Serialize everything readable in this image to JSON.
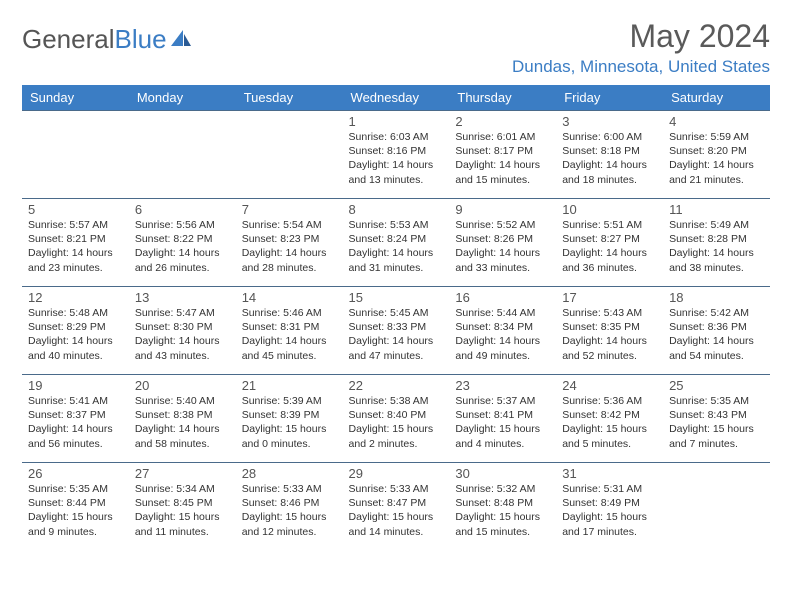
{
  "logo": {
    "text1": "General",
    "text2": "Blue"
  },
  "title": "May 2024",
  "location": "Dundas, Minnesota, United States",
  "colors": {
    "accent": "#3b7dc4",
    "text": "#333333",
    "header_text": "#5a5a5a",
    "border": "#4a6a8a"
  },
  "fonts": {
    "title_size": 32,
    "location_size": 17,
    "day_header_size": 13,
    "daynum_size": 13,
    "info_size": 10.5
  },
  "day_headers": [
    "Sunday",
    "Monday",
    "Tuesday",
    "Wednesday",
    "Thursday",
    "Friday",
    "Saturday"
  ],
  "weeks": [
    [
      null,
      null,
      null,
      {
        "n": "1",
        "sr": "Sunrise: 6:03 AM",
        "ss": "Sunset: 8:16 PM",
        "d1": "Daylight: 14 hours",
        "d2": "and 13 minutes."
      },
      {
        "n": "2",
        "sr": "Sunrise: 6:01 AM",
        "ss": "Sunset: 8:17 PM",
        "d1": "Daylight: 14 hours",
        "d2": "and 15 minutes."
      },
      {
        "n": "3",
        "sr": "Sunrise: 6:00 AM",
        "ss": "Sunset: 8:18 PM",
        "d1": "Daylight: 14 hours",
        "d2": "and 18 minutes."
      },
      {
        "n": "4",
        "sr": "Sunrise: 5:59 AM",
        "ss": "Sunset: 8:20 PM",
        "d1": "Daylight: 14 hours",
        "d2": "and 21 minutes."
      }
    ],
    [
      {
        "n": "5",
        "sr": "Sunrise: 5:57 AM",
        "ss": "Sunset: 8:21 PM",
        "d1": "Daylight: 14 hours",
        "d2": "and 23 minutes."
      },
      {
        "n": "6",
        "sr": "Sunrise: 5:56 AM",
        "ss": "Sunset: 8:22 PM",
        "d1": "Daylight: 14 hours",
        "d2": "and 26 minutes."
      },
      {
        "n": "7",
        "sr": "Sunrise: 5:54 AM",
        "ss": "Sunset: 8:23 PM",
        "d1": "Daylight: 14 hours",
        "d2": "and 28 minutes."
      },
      {
        "n": "8",
        "sr": "Sunrise: 5:53 AM",
        "ss": "Sunset: 8:24 PM",
        "d1": "Daylight: 14 hours",
        "d2": "and 31 minutes."
      },
      {
        "n": "9",
        "sr": "Sunrise: 5:52 AM",
        "ss": "Sunset: 8:26 PM",
        "d1": "Daylight: 14 hours",
        "d2": "and 33 minutes."
      },
      {
        "n": "10",
        "sr": "Sunrise: 5:51 AM",
        "ss": "Sunset: 8:27 PM",
        "d1": "Daylight: 14 hours",
        "d2": "and 36 minutes."
      },
      {
        "n": "11",
        "sr": "Sunrise: 5:49 AM",
        "ss": "Sunset: 8:28 PM",
        "d1": "Daylight: 14 hours",
        "d2": "and 38 minutes."
      }
    ],
    [
      {
        "n": "12",
        "sr": "Sunrise: 5:48 AM",
        "ss": "Sunset: 8:29 PM",
        "d1": "Daylight: 14 hours",
        "d2": "and 40 minutes."
      },
      {
        "n": "13",
        "sr": "Sunrise: 5:47 AM",
        "ss": "Sunset: 8:30 PM",
        "d1": "Daylight: 14 hours",
        "d2": "and 43 minutes."
      },
      {
        "n": "14",
        "sr": "Sunrise: 5:46 AM",
        "ss": "Sunset: 8:31 PM",
        "d1": "Daylight: 14 hours",
        "d2": "and 45 minutes."
      },
      {
        "n": "15",
        "sr": "Sunrise: 5:45 AM",
        "ss": "Sunset: 8:33 PM",
        "d1": "Daylight: 14 hours",
        "d2": "and 47 minutes."
      },
      {
        "n": "16",
        "sr": "Sunrise: 5:44 AM",
        "ss": "Sunset: 8:34 PM",
        "d1": "Daylight: 14 hours",
        "d2": "and 49 minutes."
      },
      {
        "n": "17",
        "sr": "Sunrise: 5:43 AM",
        "ss": "Sunset: 8:35 PM",
        "d1": "Daylight: 14 hours",
        "d2": "and 52 minutes."
      },
      {
        "n": "18",
        "sr": "Sunrise: 5:42 AM",
        "ss": "Sunset: 8:36 PM",
        "d1": "Daylight: 14 hours",
        "d2": "and 54 minutes."
      }
    ],
    [
      {
        "n": "19",
        "sr": "Sunrise: 5:41 AM",
        "ss": "Sunset: 8:37 PM",
        "d1": "Daylight: 14 hours",
        "d2": "and 56 minutes."
      },
      {
        "n": "20",
        "sr": "Sunrise: 5:40 AM",
        "ss": "Sunset: 8:38 PM",
        "d1": "Daylight: 14 hours",
        "d2": "and 58 minutes."
      },
      {
        "n": "21",
        "sr": "Sunrise: 5:39 AM",
        "ss": "Sunset: 8:39 PM",
        "d1": "Daylight: 15 hours",
        "d2": "and 0 minutes."
      },
      {
        "n": "22",
        "sr": "Sunrise: 5:38 AM",
        "ss": "Sunset: 8:40 PM",
        "d1": "Daylight: 15 hours",
        "d2": "and 2 minutes."
      },
      {
        "n": "23",
        "sr": "Sunrise: 5:37 AM",
        "ss": "Sunset: 8:41 PM",
        "d1": "Daylight: 15 hours",
        "d2": "and 4 minutes."
      },
      {
        "n": "24",
        "sr": "Sunrise: 5:36 AM",
        "ss": "Sunset: 8:42 PM",
        "d1": "Daylight: 15 hours",
        "d2": "and 5 minutes."
      },
      {
        "n": "25",
        "sr": "Sunrise: 5:35 AM",
        "ss": "Sunset: 8:43 PM",
        "d1": "Daylight: 15 hours",
        "d2": "and 7 minutes."
      }
    ],
    [
      {
        "n": "26",
        "sr": "Sunrise: 5:35 AM",
        "ss": "Sunset: 8:44 PM",
        "d1": "Daylight: 15 hours",
        "d2": "and 9 minutes."
      },
      {
        "n": "27",
        "sr": "Sunrise: 5:34 AM",
        "ss": "Sunset: 8:45 PM",
        "d1": "Daylight: 15 hours",
        "d2": "and 11 minutes."
      },
      {
        "n": "28",
        "sr": "Sunrise: 5:33 AM",
        "ss": "Sunset: 8:46 PM",
        "d1": "Daylight: 15 hours",
        "d2": "and 12 minutes."
      },
      {
        "n": "29",
        "sr": "Sunrise: 5:33 AM",
        "ss": "Sunset: 8:47 PM",
        "d1": "Daylight: 15 hours",
        "d2": "and 14 minutes."
      },
      {
        "n": "30",
        "sr": "Sunrise: 5:32 AM",
        "ss": "Sunset: 8:48 PM",
        "d1": "Daylight: 15 hours",
        "d2": "and 15 minutes."
      },
      {
        "n": "31",
        "sr": "Sunrise: 5:31 AM",
        "ss": "Sunset: 8:49 PM",
        "d1": "Daylight: 15 hours",
        "d2": "and 17 minutes."
      },
      null
    ]
  ]
}
